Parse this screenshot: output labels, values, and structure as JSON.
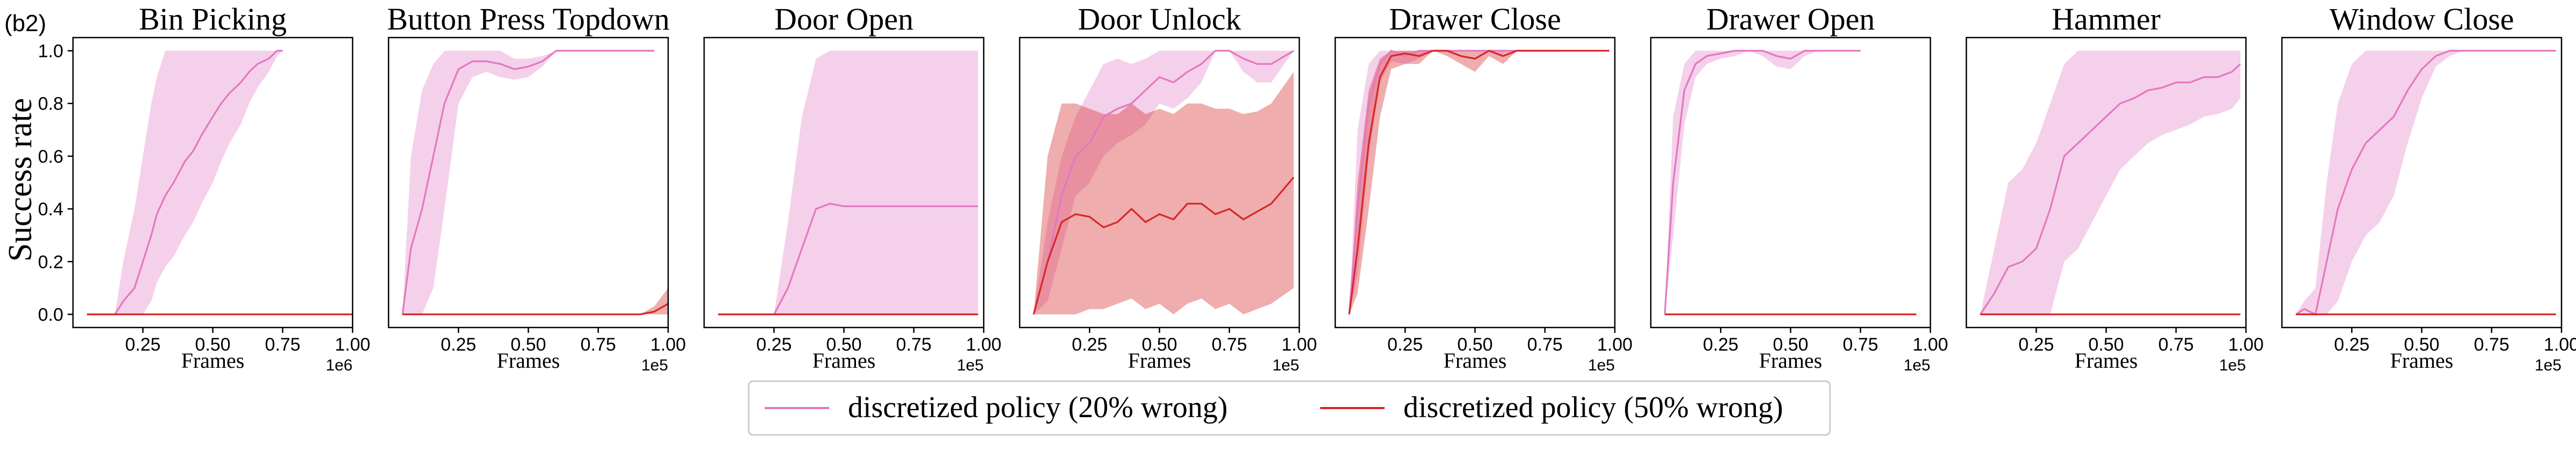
{
  "figure_label": "(b2)",
  "ylabel": "Success rate",
  "colors": {
    "pink": "#e377c2",
    "red": "#d62728"
  },
  "legend": {
    "placement": "bottom-center",
    "entries": [
      {
        "label": "discretized policy (20% wrong)",
        "color": "#e377c2"
      },
      {
        "label": "discretized policy (50% wrong)",
        "color": "#d62728"
      }
    ]
  },
  "chart_data": [
    {
      "type": "line",
      "title": "Bin Picking",
      "xlabel": "Frames",
      "x_scale_label": "1e6",
      "xlim": [
        0,
        1.0
      ],
      "ylim": [
        -0.05,
        1.05
      ],
      "x_ticks": [
        "0.25",
        "0.50",
        "0.75",
        "1.00"
      ],
      "y_ticks": [
        "0.0",
        "0.2",
        "0.4",
        "0.6",
        "0.8",
        "1.0"
      ],
      "series": [
        {
          "color": "#e377c2",
          "x": [
            0.05,
            0.15,
            0.18,
            0.22,
            0.25,
            0.28,
            0.3,
            0.33,
            0.36,
            0.4,
            0.43,
            0.46,
            0.5,
            0.53,
            0.56,
            0.6,
            0.63,
            0.66,
            0.7,
            0.73,
            0.75
          ],
          "y": [
            0.0,
            0.0,
            0.05,
            0.1,
            0.2,
            0.3,
            0.38,
            0.45,
            0.5,
            0.58,
            0.62,
            0.68,
            0.75,
            0.8,
            0.84,
            0.88,
            0.92,
            0.95,
            0.97,
            1.0,
            1.0
          ],
          "upper": [
            0.0,
            0.0,
            0.2,
            0.4,
            0.6,
            0.8,
            0.9,
            1.0,
            1.0,
            1.0,
            1.0,
            1.0,
            1.0,
            1.0,
            1.0,
            1.0,
            1.0,
            1.0,
            1.0,
            1.0,
            1.0
          ],
          "lower": [
            0.0,
            0.0,
            0.0,
            0.0,
            0.0,
            0.05,
            0.12,
            0.18,
            0.22,
            0.3,
            0.35,
            0.42,
            0.5,
            0.58,
            0.65,
            0.72,
            0.8,
            0.86,
            0.92,
            0.98,
            1.0
          ]
        },
        {
          "color": "#d62728",
          "x": [
            0.05,
            1.0
          ],
          "y": [
            0.0,
            0.0
          ],
          "upper": [
            0.0,
            0.0
          ],
          "lower": [
            0.0,
            0.0
          ]
        }
      ]
    },
    {
      "type": "line",
      "title": "Button Press Topdown",
      "xlabel": "Frames",
      "x_scale_label": "1e5",
      "xlim": [
        0,
        1.0
      ],
      "ylim": [
        -0.05,
        1.05
      ],
      "x_ticks": [
        "0.25",
        "0.50",
        "0.75",
        "1.00"
      ],
      "y_ticks": [],
      "series": [
        {
          "color": "#e377c2",
          "x": [
            0.05,
            0.08,
            0.12,
            0.16,
            0.2,
            0.25,
            0.3,
            0.35,
            0.4,
            0.45,
            0.5,
            0.55,
            0.6,
            0.65,
            0.7,
            0.8,
            0.9,
            0.95
          ],
          "y": [
            0.0,
            0.25,
            0.4,
            0.6,
            0.8,
            0.93,
            0.96,
            0.96,
            0.95,
            0.93,
            0.94,
            0.96,
            1.0,
            1.0,
            1.0,
            1.0,
            1.0,
            1.0
          ],
          "upper": [
            0.0,
            0.6,
            0.85,
            0.95,
            1.0,
            1.0,
            1.0,
            1.0,
            1.0,
            0.97,
            0.97,
            0.98,
            1.0,
            1.0,
            1.0,
            1.0,
            1.0,
            1.0
          ],
          "lower": [
            0.0,
            0.0,
            0.0,
            0.1,
            0.4,
            0.8,
            0.9,
            0.92,
            0.9,
            0.89,
            0.9,
            0.94,
            1.0,
            1.0,
            1.0,
            1.0,
            1.0,
            1.0
          ]
        },
        {
          "color": "#d62728",
          "x": [
            0.05,
            0.9,
            0.95,
            1.0
          ],
          "y": [
            0.0,
            0.0,
            0.01,
            0.04
          ],
          "upper": [
            0.0,
            0.0,
            0.03,
            0.1
          ],
          "lower": [
            0.0,
            0.0,
            0.0,
            0.0
          ]
        }
      ]
    },
    {
      "type": "line",
      "title": "Door Open",
      "xlabel": "Frames",
      "x_scale_label": "1e5",
      "xlim": [
        0,
        1.0
      ],
      "ylim": [
        -0.05,
        1.05
      ],
      "x_ticks": [
        "0.25",
        "0.50",
        "0.75",
        "1.00"
      ],
      "y_ticks": [],
      "series": [
        {
          "color": "#e377c2",
          "x": [
            0.05,
            0.25,
            0.3,
            0.35,
            0.4,
            0.45,
            0.5,
            0.6,
            0.7,
            0.8,
            0.9,
            0.98
          ],
          "y": [
            0.0,
            0.0,
            0.1,
            0.25,
            0.4,
            0.42,
            0.41,
            0.41,
            0.41,
            0.41,
            0.41,
            0.41
          ],
          "upper": [
            0.0,
            0.0,
            0.35,
            0.75,
            0.97,
            1.0,
            1.0,
            1.0,
            1.0,
            1.0,
            1.0,
            1.0
          ],
          "lower": [
            0.0,
            0.0,
            0.0,
            0.0,
            0.0,
            0.0,
            0.0,
            0.0,
            0.0,
            0.0,
            0.0,
            0.0
          ]
        },
        {
          "color": "#d62728",
          "x": [
            0.05,
            0.98
          ],
          "y": [
            0.0,
            0.0
          ],
          "upper": [
            0.0,
            0.0
          ],
          "lower": [
            0.0,
            0.0
          ]
        }
      ]
    },
    {
      "type": "line",
      "title": "Door Unlock",
      "xlabel": "Frames",
      "x_scale_label": "1e5",
      "xlim": [
        0,
        1.0
      ],
      "ylim": [
        -0.05,
        1.05
      ],
      "x_ticks": [
        "0.25",
        "0.50",
        "0.75",
        "1.00"
      ],
      "y_ticks": [],
      "series": [
        {
          "color": "#e377c2",
          "x": [
            0.05,
            0.1,
            0.15,
            0.2,
            0.25,
            0.3,
            0.35,
            0.4,
            0.45,
            0.5,
            0.55,
            0.6,
            0.65,
            0.7,
            0.75,
            0.8,
            0.85,
            0.9,
            0.98
          ],
          "y": [
            0.0,
            0.2,
            0.45,
            0.6,
            0.65,
            0.75,
            0.78,
            0.8,
            0.85,
            0.9,
            0.88,
            0.92,
            0.95,
            1.0,
            1.0,
            0.97,
            0.95,
            0.95,
            1.0
          ],
          "upper": [
            0.0,
            0.35,
            0.6,
            0.75,
            0.85,
            0.95,
            0.97,
            0.95,
            0.97,
            1.0,
            1.0,
            1.0,
            1.0,
            1.0,
            1.0,
            1.0,
            1.0,
            1.0,
            1.0
          ],
          "lower": [
            0.0,
            0.05,
            0.25,
            0.45,
            0.5,
            0.6,
            0.65,
            0.68,
            0.72,
            0.8,
            0.78,
            0.82,
            0.88,
            1.0,
            1.0,
            0.92,
            0.88,
            0.88,
            1.0
          ]
        },
        {
          "color": "#d62728",
          "x": [
            0.05,
            0.1,
            0.15,
            0.2,
            0.25,
            0.3,
            0.35,
            0.4,
            0.45,
            0.5,
            0.55,
            0.6,
            0.65,
            0.7,
            0.75,
            0.8,
            0.85,
            0.9,
            0.98
          ],
          "y": [
            0.0,
            0.2,
            0.35,
            0.38,
            0.37,
            0.33,
            0.35,
            0.4,
            0.35,
            0.38,
            0.36,
            0.42,
            0.42,
            0.38,
            0.4,
            0.36,
            0.39,
            0.42,
            0.52
          ],
          "upper": [
            0.0,
            0.6,
            0.8,
            0.8,
            0.78,
            0.76,
            0.76,
            0.8,
            0.76,
            0.78,
            0.76,
            0.8,
            0.8,
            0.78,
            0.78,
            0.76,
            0.77,
            0.8,
            0.92
          ],
          "lower": [
            0.0,
            0.0,
            0.0,
            0.0,
            0.02,
            0.02,
            0.04,
            0.06,
            0.02,
            0.04,
            0.0,
            0.04,
            0.06,
            0.02,
            0.04,
            0.0,
            0.02,
            0.04,
            0.1
          ]
        }
      ]
    },
    {
      "type": "line",
      "title": "Drawer Close",
      "xlabel": "Frames",
      "x_scale_label": "1e5",
      "xlim": [
        0,
        1.0
      ],
      "ylim": [
        -0.05,
        1.05
      ],
      "x_ticks": [
        "0.25",
        "0.50",
        "0.75",
        "1.00"
      ],
      "y_ticks": [],
      "series": [
        {
          "color": "#e377c2",
          "x": [
            0.05,
            0.08,
            0.12,
            0.16,
            0.2,
            0.25,
            0.3,
            0.35,
            0.4,
            0.45,
            0.5,
            0.55,
            0.6,
            0.65,
            0.7,
            0.75,
            0.8
          ],
          "y": [
            0.0,
            0.4,
            0.8,
            0.95,
            1.0,
            0.98,
            1.0,
            1.0,
            1.0,
            1.0,
            1.0,
            1.0,
            1.0,
            1.0,
            1.0,
            1.0,
            1.0
          ],
          "upper": [
            0.0,
            0.7,
            0.95,
            1.0,
            1.0,
            1.0,
            1.0,
            1.0,
            1.0,
            1.0,
            1.0,
            1.0,
            1.0,
            1.0,
            1.0,
            1.0,
            1.0
          ],
          "lower": [
            0.0,
            0.15,
            0.6,
            0.88,
            0.96,
            0.95,
            0.97,
            1.0,
            1.0,
            1.0,
            1.0,
            1.0,
            1.0,
            1.0,
            1.0,
            1.0,
            1.0
          ]
        },
        {
          "color": "#d62728",
          "x": [
            0.05,
            0.08,
            0.12,
            0.16,
            0.2,
            0.25,
            0.3,
            0.35,
            0.4,
            0.45,
            0.5,
            0.55,
            0.6,
            0.65,
            0.7,
            0.75,
            0.8,
            0.9,
            0.98
          ],
          "y": [
            0.0,
            0.25,
            0.65,
            0.9,
            0.98,
            0.99,
            0.98,
            1.0,
            1.0,
            0.98,
            0.97,
            1.0,
            0.98,
            1.0,
            1.0,
            1.0,
            1.0,
            1.0,
            1.0
          ],
          "upper": [
            0.0,
            0.5,
            0.85,
            0.97,
            1.0,
            1.0,
            1.0,
            1.0,
            1.0,
            1.0,
            1.0,
            1.0,
            1.0,
            1.0,
            1.0,
            1.0,
            1.0,
            1.0,
            1.0
          ],
          "lower": [
            0.0,
            0.08,
            0.4,
            0.75,
            0.93,
            0.95,
            0.95,
            1.0,
            0.98,
            0.95,
            0.92,
            0.98,
            0.95,
            1.0,
            1.0,
            1.0,
            1.0,
            1.0,
            1.0
          ]
        }
      ]
    },
    {
      "type": "line",
      "title": "Drawer Open",
      "xlabel": "Frames",
      "x_scale_label": "1e5",
      "xlim": [
        0,
        1.0
      ],
      "ylim": [
        -0.05,
        1.05
      ],
      "x_ticks": [
        "0.25",
        "0.50",
        "0.75",
        "1.00"
      ],
      "y_ticks": [],
      "series": [
        {
          "color": "#e377c2",
          "x": [
            0.05,
            0.08,
            0.12,
            0.16,
            0.2,
            0.25,
            0.3,
            0.35,
            0.4,
            0.45,
            0.5,
            0.55,
            0.6,
            0.65,
            0.7,
            0.75
          ],
          "y": [
            0.0,
            0.5,
            0.85,
            0.95,
            0.98,
            0.99,
            1.0,
            1.0,
            1.0,
            0.98,
            0.97,
            1.0,
            1.0,
            1.0,
            1.0,
            1.0
          ],
          "upper": [
            0.0,
            0.75,
            0.95,
            1.0,
            1.0,
            1.0,
            1.0,
            1.0,
            1.0,
            1.0,
            1.0,
            1.0,
            1.0,
            1.0,
            1.0,
            1.0
          ],
          "lower": [
            0.0,
            0.3,
            0.72,
            0.9,
            0.95,
            0.97,
            0.98,
            1.0,
            0.98,
            0.94,
            0.93,
            0.98,
            1.0,
            1.0,
            1.0,
            1.0
          ]
        },
        {
          "color": "#d62728",
          "x": [
            0.05,
            0.95
          ],
          "y": [
            0.0,
            0.0
          ],
          "upper": [
            0.0,
            0.0
          ],
          "lower": [
            0.0,
            0.0
          ]
        }
      ]
    },
    {
      "type": "line",
      "title": "Hammer",
      "xlabel": "Frames",
      "x_scale_label": "1e5",
      "xlim": [
        0,
        1.0
      ],
      "ylim": [
        -0.05,
        1.05
      ],
      "x_ticks": [
        "0.25",
        "0.50",
        "0.75",
        "1.00"
      ],
      "y_ticks": [],
      "series": [
        {
          "color": "#e377c2",
          "x": [
            0.05,
            0.1,
            0.15,
            0.2,
            0.25,
            0.3,
            0.35,
            0.4,
            0.45,
            0.5,
            0.55,
            0.6,
            0.65,
            0.7,
            0.75,
            0.8,
            0.85,
            0.9,
            0.95,
            0.98
          ],
          "y": [
            0.0,
            0.08,
            0.18,
            0.2,
            0.25,
            0.4,
            0.6,
            0.65,
            0.7,
            0.75,
            0.8,
            0.82,
            0.85,
            0.86,
            0.88,
            0.88,
            0.9,
            0.9,
            0.92,
            0.95
          ],
          "upper": [
            0.0,
            0.25,
            0.5,
            0.55,
            0.65,
            0.8,
            0.95,
            1.0,
            1.0,
            1.0,
            1.0,
            1.0,
            1.0,
            1.0,
            1.0,
            1.0,
            1.0,
            1.0,
            1.0,
            1.0
          ],
          "lower": [
            0.0,
            0.0,
            0.0,
            0.0,
            0.0,
            0.0,
            0.2,
            0.25,
            0.35,
            0.45,
            0.55,
            0.6,
            0.65,
            0.68,
            0.7,
            0.72,
            0.75,
            0.76,
            0.78,
            0.82
          ]
        },
        {
          "color": "#d62728",
          "x": [
            0.05,
            0.98
          ],
          "y": [
            0.0,
            0.0
          ],
          "upper": [
            0.0,
            0.0
          ],
          "lower": [
            0.0,
            0.0
          ]
        }
      ]
    },
    {
      "type": "line",
      "title": "Window Close",
      "xlabel": "Frames",
      "x_scale_label": "1e5",
      "xlim": [
        0,
        1.0
      ],
      "ylim": [
        -0.05,
        1.05
      ],
      "x_ticks": [
        "0.25",
        "0.50",
        "0.75",
        "1.00"
      ],
      "y_ticks": [],
      "series": [
        {
          "color": "#e377c2",
          "x": [
            0.05,
            0.08,
            0.12,
            0.16,
            0.2,
            0.25,
            0.3,
            0.35,
            0.4,
            0.45,
            0.5,
            0.55,
            0.6,
            0.65,
            0.7,
            0.8,
            0.9,
            0.98
          ],
          "y": [
            0.0,
            0.02,
            0.0,
            0.2,
            0.4,
            0.55,
            0.65,
            0.7,
            0.75,
            0.85,
            0.93,
            0.98,
            1.0,
            1.0,
            1.0,
            1.0,
            1.0,
            1.0
          ],
          "upper": [
            0.0,
            0.05,
            0.1,
            0.5,
            0.8,
            0.95,
            1.0,
            1.0,
            1.0,
            1.0,
            1.0,
            1.0,
            1.0,
            1.0,
            1.0,
            1.0,
            1.0,
            1.0
          ],
          "lower": [
            0.0,
            0.0,
            0.0,
            0.0,
            0.05,
            0.2,
            0.3,
            0.35,
            0.45,
            0.65,
            0.82,
            0.94,
            0.98,
            1.0,
            1.0,
            1.0,
            1.0,
            1.0
          ]
        },
        {
          "color": "#d62728",
          "x": [
            0.05,
            0.98
          ],
          "y": [
            0.0,
            0.0
          ],
          "upper": [
            0.0,
            0.0
          ],
          "lower": [
            0.0,
            0.0
          ]
        }
      ]
    }
  ]
}
